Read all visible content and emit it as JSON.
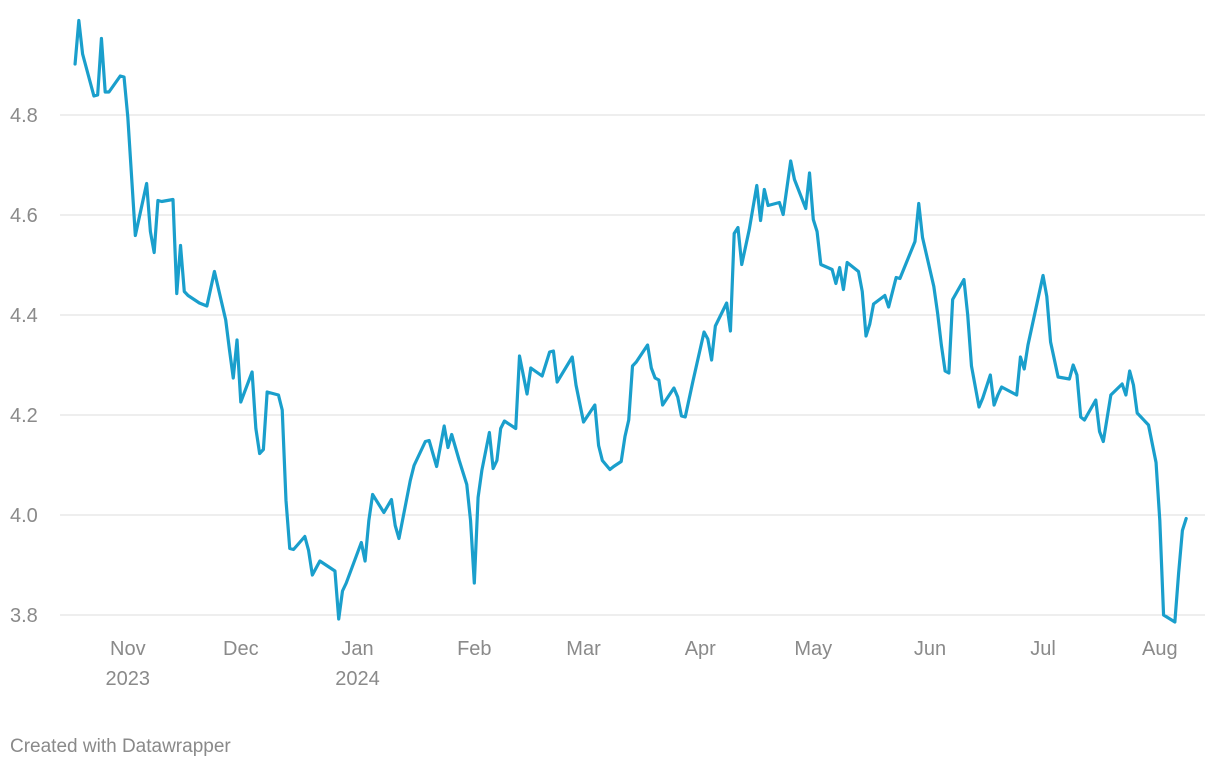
{
  "chart_data": {
    "type": "line",
    "footer": "Created with Datawrapper",
    "xlim": [
      -18,
      286
    ],
    "ylim": [
      3.77,
      5.0
    ],
    "yticks": [
      3.8,
      {
        "value": 4,
        "label": "4.0"
      },
      4.2,
      4.4,
      4.6,
      4.8
    ],
    "xticks": [
      {
        "value": 0,
        "label": "Nov 2023"
      },
      {
        "value": 30,
        "label": "Dec"
      },
      {
        "value": 61,
        "label": "Jan 2024"
      },
      {
        "value": 92,
        "label": "Feb"
      },
      {
        "value": 121,
        "label": "Mar"
      },
      {
        "value": 152,
        "label": "Apr"
      },
      {
        "value": 182,
        "label": "May"
      },
      {
        "value": 213,
        "label": "Jun"
      },
      {
        "value": 243,
        "label": "Jul"
      },
      {
        "value": 274,
        "label": "Aug"
      }
    ],
    "grid": true,
    "series": [
      {
        "color": "#1a9fcc",
        "x": [
          -14,
          -13,
          -12,
          -9,
          -8,
          -7,
          -6,
          -5,
          -2,
          -1,
          0,
          2,
          5,
          6,
          7,
          8,
          9,
          12,
          13,
          14,
          15,
          16,
          19,
          21,
          23,
          26,
          27,
          28,
          29,
          30,
          33,
          34,
          35,
          36,
          37,
          40,
          41,
          42,
          43,
          44,
          47,
          48,
          49,
          51,
          55,
          56,
          57,
          58,
          62,
          63,
          64,
          65,
          68,
          70,
          71,
          72,
          75,
          76,
          79,
          80,
          82,
          84,
          85,
          86,
          88,
          90,
          91,
          92,
          93,
          94,
          96,
          97,
          98,
          99,
          100,
          103,
          104,
          106,
          107,
          110,
          112,
          113,
          114,
          118,
          119,
          121,
          124,
          125,
          126,
          128,
          129,
          131,
          132,
          133,
          134,
          135,
          138,
          139,
          140,
          141,
          142,
          145,
          146,
          147,
          148,
          150,
          153,
          154,
          155,
          156,
          159,
          160,
          161,
          162,
          163,
          165,
          167,
          168,
          169,
          170,
          173,
          174,
          176,
          177,
          180,
          181,
          182,
          183,
          184,
          187,
          188,
          189,
          190,
          191,
          194,
          195,
          196,
          197,
          198,
          201,
          202,
          204,
          205,
          209,
          210,
          211,
          214,
          215,
          216,
          217,
          218,
          219,
          222,
          223,
          224,
          226,
          227,
          229,
          230,
          231,
          232,
          236,
          237,
          238,
          239,
          243,
          244,
          245,
          247,
          250,
          251,
          252,
          253,
          254,
          257,
          258,
          259,
          261,
          264,
          265,
          266,
          267,
          268,
          271,
          273,
          274,
          275,
          278,
          279,
          280,
          281
        ],
        "values": [
          4.902,
          4.989,
          4.922,
          4.838,
          4.84,
          4.953,
          4.846,
          4.846,
          4.878,
          4.876,
          4.796,
          4.559,
          4.663,
          4.567,
          4.525,
          4.629,
          4.627,
          4.631,
          4.443,
          4.539,
          4.447,
          4.439,
          4.424,
          4.418,
          4.487,
          4.39,
          4.33,
          4.274,
          4.35,
          4.226,
          4.286,
          4.173,
          4.123,
          4.131,
          4.246,
          4.24,
          4.21,
          4.029,
          3.933,
          3.931,
          3.957,
          3.929,
          3.88,
          3.908,
          3.888,
          3.792,
          3.848,
          3.864,
          3.945,
          3.908,
          3.989,
          4.041,
          4.005,
          4.031,
          3.979,
          3.953,
          4.069,
          4.099,
          4.147,
          4.149,
          4.097,
          4.178,
          4.135,
          4.161,
          4.109,
          4.061,
          3.989,
          3.864,
          4.035,
          4.089,
          4.165,
          4.093,
          4.109,
          4.173,
          4.188,
          4.173,
          4.318,
          4.242,
          4.294,
          4.278,
          4.326,
          4.328,
          4.266,
          4.316,
          4.26,
          4.186,
          4.22,
          4.139,
          4.109,
          4.091,
          4.097,
          4.107,
          4.157,
          4.19,
          4.298,
          4.306,
          4.34,
          4.294,
          4.274,
          4.27,
          4.22,
          4.254,
          4.236,
          4.198,
          4.196,
          4.266,
          4.366,
          4.352,
          4.31,
          4.378,
          4.424,
          4.368,
          4.563,
          4.575,
          4.501,
          4.571,
          4.659,
          4.589,
          4.651,
          4.619,
          4.625,
          4.601,
          4.708,
          4.671,
          4.613,
          4.684,
          4.591,
          4.567,
          4.501,
          4.491,
          4.463,
          4.495,
          4.451,
          4.505,
          4.487,
          4.447,
          4.358,
          4.382,
          4.422,
          4.439,
          4.416,
          4.475,
          4.473,
          4.547,
          4.623,
          4.555,
          4.457,
          4.404,
          4.34,
          4.288,
          4.284,
          4.431,
          4.471,
          4.4,
          4.298,
          4.216,
          4.234,
          4.28,
          4.22,
          4.24,
          4.256,
          4.24,
          4.316,
          4.292,
          4.34,
          4.479,
          4.437,
          4.346,
          4.276,
          4.272,
          4.3,
          4.28,
          4.196,
          4.19,
          4.23,
          4.167,
          4.147,
          4.24,
          4.262,
          4.24,
          4.288,
          4.26,
          4.204,
          4.18,
          4.105,
          3.989,
          3.8,
          3.786,
          3.884,
          3.969,
          3.993
        ]
      }
    ]
  }
}
